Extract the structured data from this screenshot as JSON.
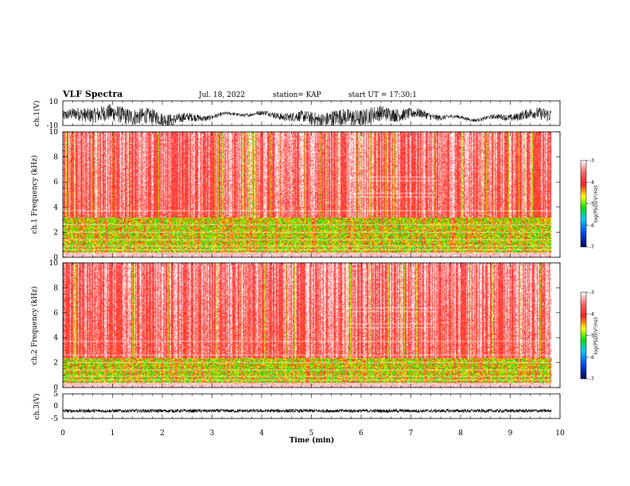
{
  "header": {
    "title": "VLF Spectra",
    "date": "Jul. 18, 2022",
    "station": "station= KAP",
    "start": "start UT = 17:30:1"
  },
  "chart_data": [
    {
      "type": "line",
      "panel": "ch1-waveform",
      "ylabel": "ch.1(V)",
      "ylim": [
        -10,
        10
      ],
      "yticks": [
        "10",
        "-10"
      ],
      "xlim": [
        0,
        10
      ],
      "description_free": true,
      "color": "#000000"
    },
    {
      "type": "heatmap",
      "panel": "ch1-spectrogram",
      "ylabel": "ch.1\nFrequency (kHz)",
      "ylim": [
        0,
        10
      ],
      "yticks": [
        "0",
        "2",
        "4",
        "6",
        "8",
        "10"
      ],
      "xlim": [
        0,
        10
      ],
      "colorbar": {
        "label": "log(PSD)(V²/Hz)",
        "range": [
          -7,
          -3
        ],
        "ticks": [
          "-3",
          "-4",
          "-5",
          "-6",
          "-7"
        ]
      }
    },
    {
      "type": "heatmap",
      "panel": "ch2-spectrogram",
      "ylabel": "ch.2\nFrequency (kHz)",
      "ylim": [
        0,
        10
      ],
      "yticks": [
        "0",
        "2",
        "4",
        "6",
        "8",
        "10"
      ],
      "xlim": [
        0,
        10
      ],
      "colorbar": {
        "label": "log(PSD)(V²/Hz)",
        "range": [
          -7,
          -3
        ],
        "ticks": [
          "-3",
          "-4",
          "-5",
          "-6",
          "-7"
        ]
      }
    },
    {
      "type": "line",
      "panel": "ch3-waveform",
      "ylabel": "ch.3(V)",
      "ylim": [
        -5,
        5
      ],
      "yticks": [
        "5",
        "0",
        "-5"
      ],
      "xlim": [
        0,
        10
      ],
      "color": "#000000"
    }
  ],
  "xaxis": {
    "label": "Time (min)",
    "ticks": [
      "0",
      "1",
      "2",
      "3",
      "4",
      "5",
      "6",
      "7",
      "8",
      "9",
      "10"
    ],
    "data_end": 9.83
  },
  "colors": {
    "low": "#000080",
    "mid_low": "#00a0ff",
    "mid": "#00e000",
    "mid_high": "#ffff00",
    "high": "#ff2020",
    "top": "#ffffff"
  }
}
